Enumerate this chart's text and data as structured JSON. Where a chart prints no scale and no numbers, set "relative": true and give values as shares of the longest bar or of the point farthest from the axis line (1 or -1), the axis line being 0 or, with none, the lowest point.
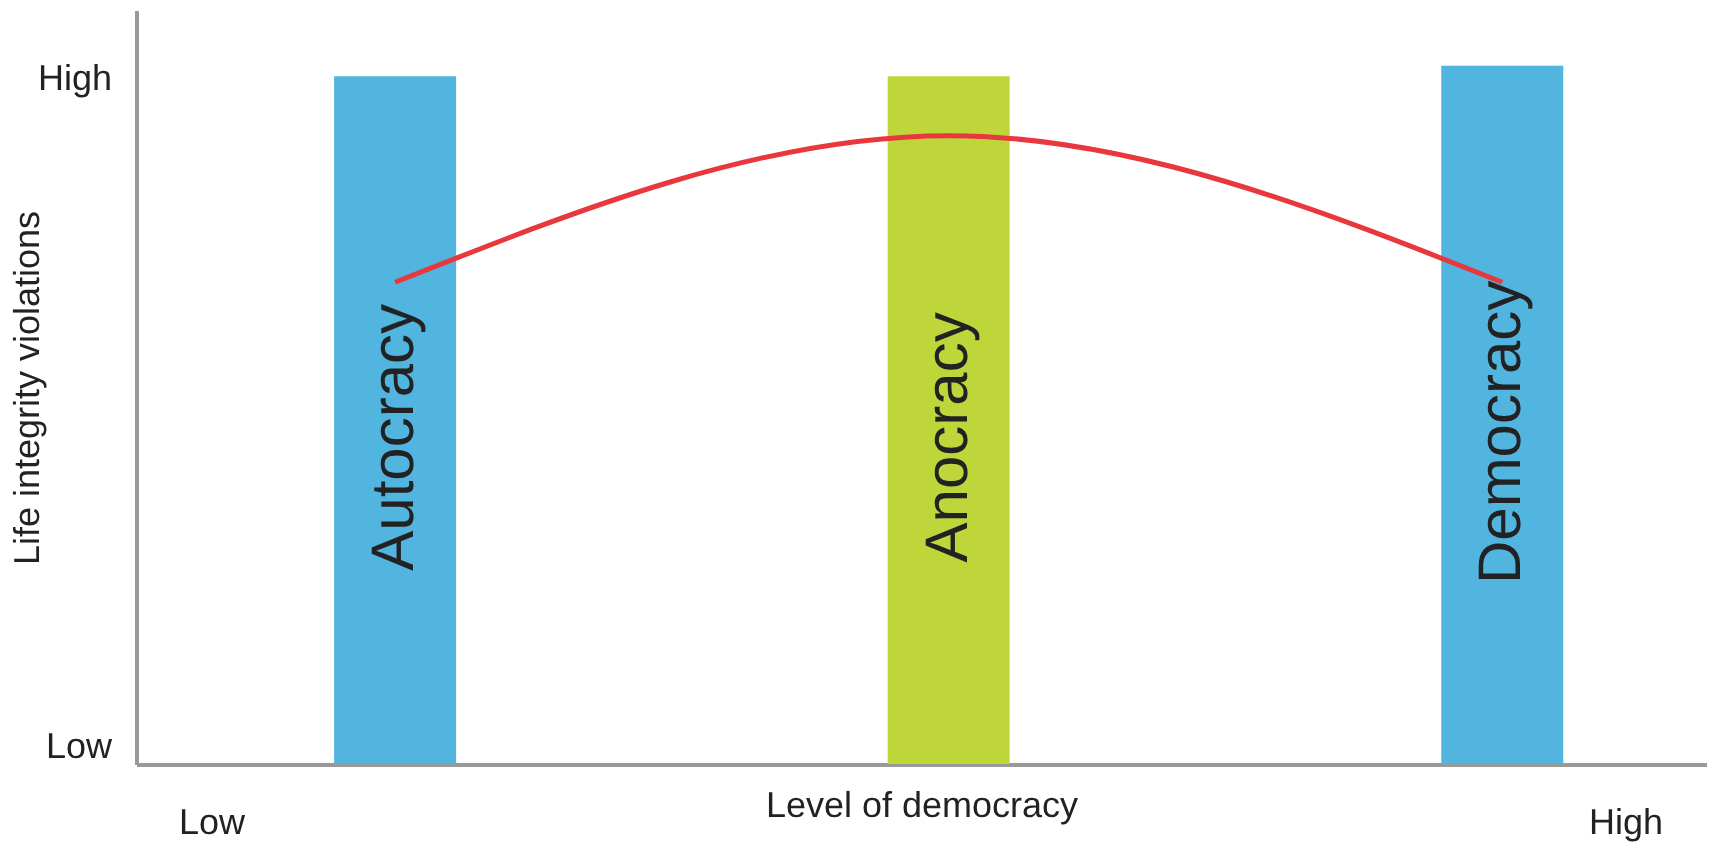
{
  "chart_data": {
    "type": "bar",
    "relative": true,
    "xlabel": "Level of democracy",
    "ylabel": "Life integrity violations",
    "categories": [
      "Autocracy",
      "Anocracy",
      "Democracy"
    ],
    "values": [
      0.985,
      0.985,
      1
    ],
    "colors": [
      "#52b5e0",
      "#bfd63a",
      "#52b5e0"
    ],
    "series": [
      {
        "type": "line",
        "color": "#e8383d",
        "values": [
          0.69,
          0.9,
          0.69
        ]
      }
    ],
    "annotations": [
      "High",
      "Low",
      "Low",
      "High"
    ],
    "tick_labels": false,
    "grid": false
  }
}
